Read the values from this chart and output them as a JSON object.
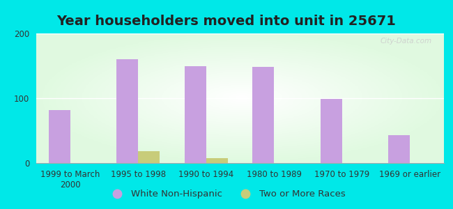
{
  "title": "Year householders moved into unit in 25671",
  "categories": [
    "1999 to March\n2000",
    "1995 to 1998",
    "1990 to 1994",
    "1980 to 1989",
    "1970 to 1979",
    "1969 or earlier"
  ],
  "white_non_hispanic": [
    82,
    160,
    150,
    148,
    99,
    43
  ],
  "two_or_more_races": [
    0,
    18,
    8,
    0,
    0,
    0
  ],
  "bar_color_white": "#c8a0e0",
  "bar_color_two": "#c8cc7a",
  "background_outer": "#00e8e8",
  "ylim": [
    0,
    200
  ],
  "yticks": [
    0,
    100,
    200
  ],
  "title_fontsize": 14,
  "tick_fontsize": 8.5,
  "legend_fontsize": 9.5,
  "watermark": "City-Data.com"
}
